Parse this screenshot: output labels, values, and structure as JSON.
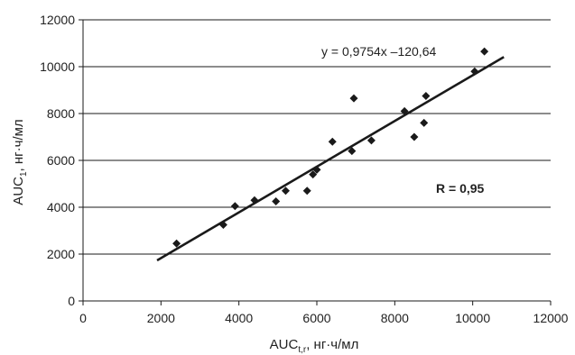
{
  "chart_data": {
    "type": "scatter",
    "xlabel": {
      "main": "AUC",
      "sub": "t,r",
      "unit": ", нг·ч/мл"
    },
    "ylabel": {
      "main": "AUC",
      "sub": "1",
      "unit": ", нг·ч/мл"
    },
    "xlim": [
      0,
      12000
    ],
    "ylim": [
      0,
      12000
    ],
    "x_ticks": [
      "0",
      "2000",
      "4000",
      "6000",
      "8000",
      "10000",
      "12000"
    ],
    "y_ticks": [
      "0",
      "2000",
      "4000",
      "6000",
      "8000",
      "10000",
      "12000"
    ],
    "grid": "horizontal",
    "marker": "diamond",
    "colors": {
      "points": "#1a1a1a",
      "trendline": "#1a1a1a",
      "grid": "#1a1a1a"
    },
    "points": [
      {
        "x": 2400,
        "y": 2450
      },
      {
        "x": 3600,
        "y": 3250
      },
      {
        "x": 3900,
        "y": 4050
      },
      {
        "x": 4400,
        "y": 4300
      },
      {
        "x": 4950,
        "y": 4250
      },
      {
        "x": 5200,
        "y": 4700
      },
      {
        "x": 5750,
        "y": 4700
      },
      {
        "x": 5900,
        "y": 5400
      },
      {
        "x": 6000,
        "y": 5600
      },
      {
        "x": 6400,
        "y": 6800
      },
      {
        "x": 6900,
        "y": 6400
      },
      {
        "x": 6950,
        "y": 8650
      },
      {
        "x": 7400,
        "y": 6850
      },
      {
        "x": 8250,
        "y": 8100
      },
      {
        "x": 8500,
        "y": 7000
      },
      {
        "x": 8750,
        "y": 7600
      },
      {
        "x": 8800,
        "y": 8750
      },
      {
        "x": 10050,
        "y": 9800
      },
      {
        "x": 10300,
        "y": 10650
      }
    ],
    "trendline": {
      "slope": 0.9754,
      "intercept": -120.64,
      "x_range": [
        1900,
        10800
      ]
    },
    "annotations": {
      "equation": "y = 0,9754x –120,64",
      "r_value": "R = 0,95"
    }
  }
}
